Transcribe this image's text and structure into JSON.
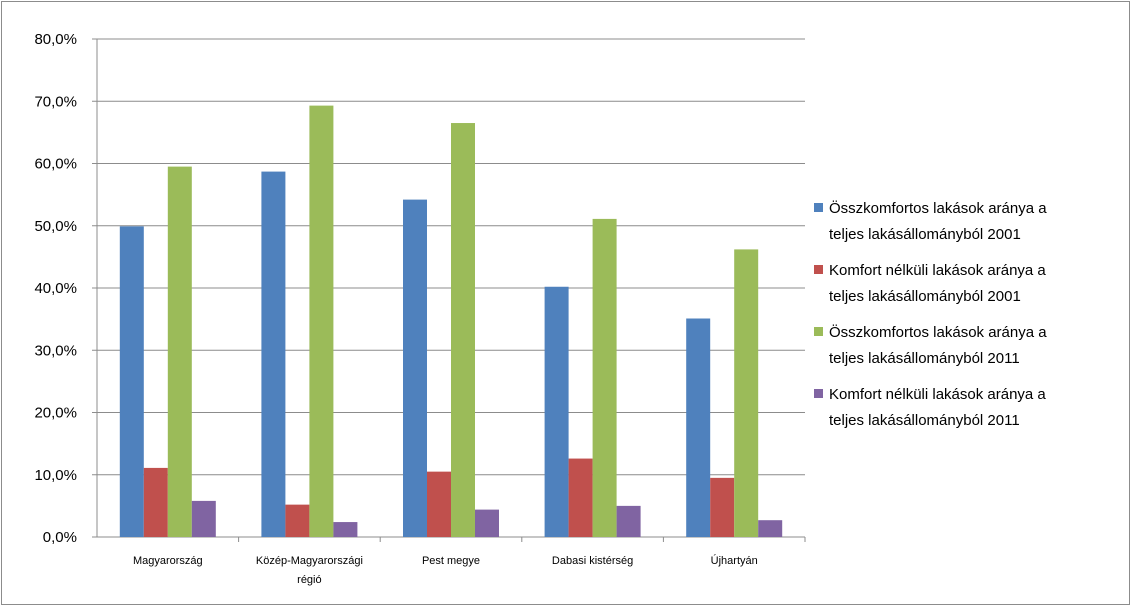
{
  "chart_data": {
    "type": "bar",
    "categories": [
      [
        "Magyarország"
      ],
      [
        "Közép-Magyarországi",
        "régió"
      ],
      [
        "Pest megye"
      ],
      [
        "Dabasi kistérség"
      ],
      [
        "Újhartyán"
      ]
    ],
    "series": [
      {
        "name": [
          "Összkomfortos lakások aránya a",
          "teljes lakásállományból 2001"
        ],
        "color": "#4f81bd",
        "values": [
          49.9,
          58.7,
          54.2,
          40.2,
          35.1
        ]
      },
      {
        "name": [
          "Komfort nélküli lakások aránya a",
          "teljes lakásállományból 2001"
        ],
        "color": "#c0504d",
        "values": [
          11.1,
          5.2,
          10.5,
          12.6,
          9.5
        ]
      },
      {
        "name": [
          "Összkomfortos lakások aránya a",
          "teljes lakásállományból 2011"
        ],
        "color": "#9bbb59",
        "values": [
          59.5,
          69.3,
          66.5,
          51.1,
          46.2
        ]
      },
      {
        "name": [
          "Komfort nélküli lakások aránya a",
          "teljes lakásállományból 2011"
        ],
        "color": "#8064a2",
        "values": [
          5.8,
          2.4,
          4.4,
          5.0,
          2.7
        ]
      }
    ],
    "yticks": [
      "0,0%",
      "10,0%",
      "20,0%",
      "30,0%",
      "40,0%",
      "50,0%",
      "60,0%",
      "70,0%",
      "80,0%"
    ],
    "ylim": [
      0,
      80
    ],
    "grid": true,
    "legend_position": "right",
    "title": "",
    "xlabel": "",
    "ylabel": ""
  }
}
